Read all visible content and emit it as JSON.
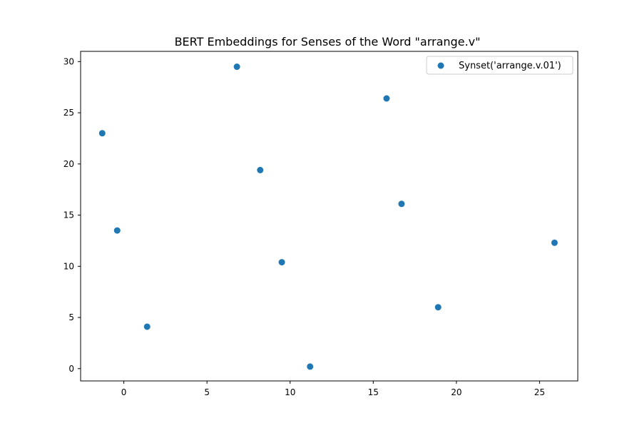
{
  "chart_data": {
    "type": "scatter",
    "title": "BERT Embeddings for Senses of the Word \"arrange.v\"",
    "xlabel": "",
    "ylabel": "",
    "xlim": [
      -2.6,
      27.3
    ],
    "ylim": [
      -1.2,
      31.0
    ],
    "xticks": [
      0,
      5,
      10,
      15,
      20,
      25
    ],
    "yticks": [
      0,
      5,
      10,
      15,
      20,
      25,
      30
    ],
    "grid": false,
    "legend_position": "upper-right",
    "series": [
      {
        "name": "Synset('arrange.v.01')",
        "color": "#1f77b4",
        "points": [
          {
            "x": -1.3,
            "y": 23.0
          },
          {
            "x": -0.4,
            "y": 13.5
          },
          {
            "x": 1.4,
            "y": 4.1
          },
          {
            "x": 6.8,
            "y": 29.5
          },
          {
            "x": 8.2,
            "y": 19.4
          },
          {
            "x": 9.5,
            "y": 10.4
          },
          {
            "x": 11.2,
            "y": 0.2
          },
          {
            "x": 15.8,
            "y": 26.4
          },
          {
            "x": 16.7,
            "y": 16.1
          },
          {
            "x": 18.9,
            "y": 6.0
          },
          {
            "x": 25.9,
            "y": 12.3
          }
        ]
      }
    ]
  }
}
